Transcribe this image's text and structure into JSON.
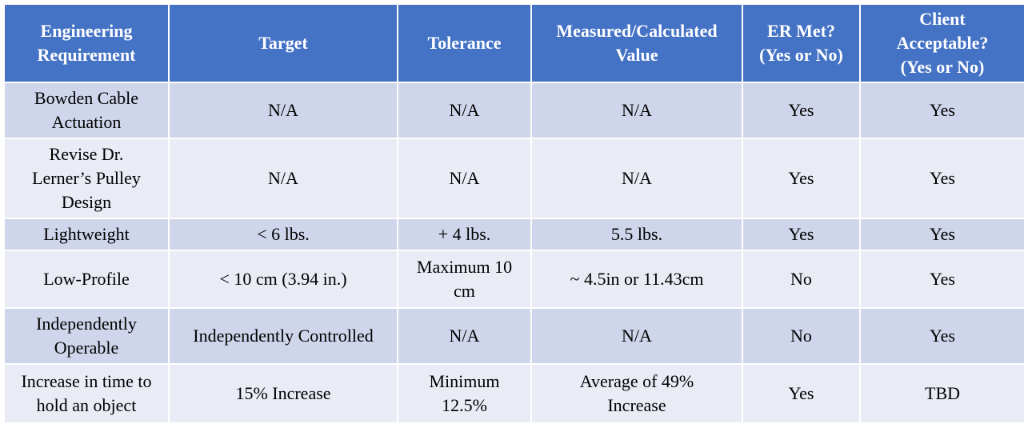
{
  "table": {
    "headers": [
      "Engineering Requirement",
      "Target",
      "Tolerance",
      "Measured/Calculated Value",
      "ER Met? (Yes or No)",
      "Client Acceptable? (Yes or No)"
    ],
    "rows": [
      [
        "Bowden Cable Actuation",
        "N/A",
        "N/A",
        "N/A",
        "Yes",
        "Yes"
      ],
      [
        "Revise Dr. Lerner’s Pulley Design",
        "N/A",
        "N/A",
        "N/A",
        "Yes",
        "Yes"
      ],
      [
        "Lightweight",
        "< 6 lbs.",
        "+ 4 lbs.",
        "5.5 lbs.",
        "Yes",
        "Yes"
      ],
      [
        "Low-Profile",
        "< 10 cm (3.94 in.)",
        "Maximum 10 cm",
        "~ 4.5in or 11.43cm",
        "No",
        "Yes"
      ],
      [
        "Independently Operable",
        "Independently Controlled",
        "N/A",
        "N/A",
        "No",
        "Yes"
      ],
      [
        "Increase in time to hold an object",
        "15% Increase",
        "Minimum 12.5%",
        "Average of 49% Increase",
        "Yes",
        "TBD"
      ]
    ]
  },
  "colors": {
    "header_bg": "#4472c4",
    "row_band_dark": "#cfd5ea",
    "row_band_light": "#e9ebf5",
    "border": "#ffffff"
  }
}
